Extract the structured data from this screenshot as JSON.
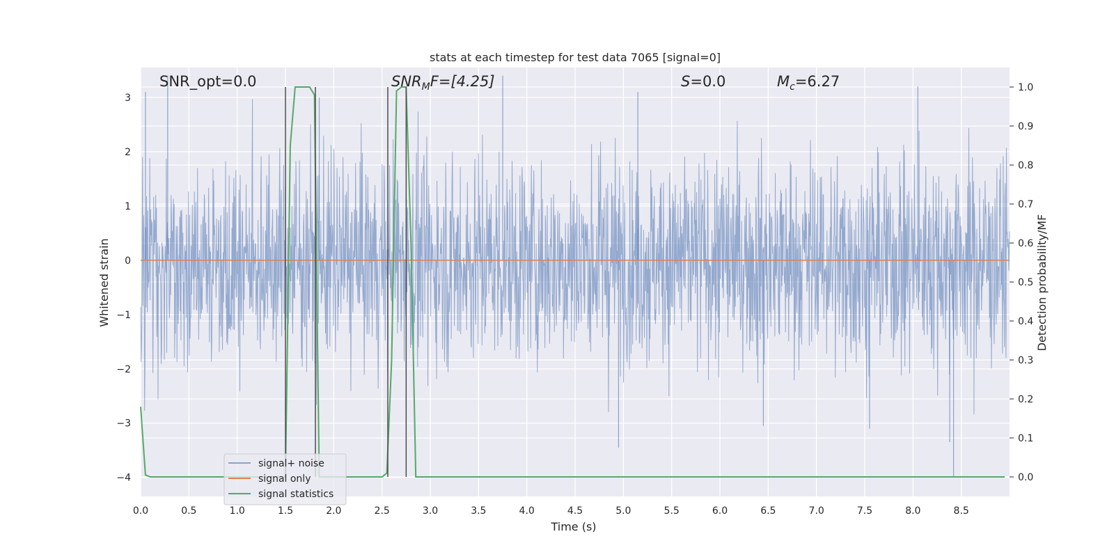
{
  "chart_data": {
    "type": "line",
    "title": "stats at each timestep for test data 7065 [signal=0]",
    "xlabel": "Time (s)",
    "ylabel": "Whitened strain",
    "y2label": "Detection probability/MF",
    "xlim": [
      0.0,
      9.0
    ],
    "ylim": [
      -4.35,
      3.55
    ],
    "y2lim": [
      -0.05,
      1.05
    ],
    "xticks": [
      0.0,
      0.5,
      1.0,
      1.5,
      2.0,
      2.5,
      3.0,
      3.5,
      4.0,
      4.5,
      5.0,
      5.5,
      6.0,
      6.5,
      7.0,
      7.5,
      8.0,
      8.5
    ],
    "xtick_labels": [
      "0.0",
      "0.5",
      "1.0",
      "1.5",
      "2.0",
      "2.5",
      "3.0",
      "3.5",
      "4.0",
      "4.5",
      "5.0",
      "5.5",
      "6.0",
      "6.5",
      "7.0",
      "7.5",
      "8.0",
      "8.5"
    ],
    "yticks": [
      3,
      2,
      1,
      0,
      -1,
      -2,
      -3,
      -4
    ],
    "ytick_labels": [
      "3",
      "2",
      "1",
      "0",
      "−1",
      "−2",
      "−3",
      "−4"
    ],
    "y2ticks": [
      1.0,
      0.9,
      0.8,
      0.7,
      0.6,
      0.5,
      0.4,
      0.3,
      0.2,
      0.1,
      0.0
    ],
    "y2tick_labels": [
      "1.0",
      "0.9",
      "0.8",
      "0.7",
      "0.6",
      "0.5",
      "0.4",
      "0.3",
      "0.2",
      "0.1",
      "0.0"
    ],
    "grid": true,
    "legend_position": "lower-left",
    "annotations": {
      "snr_opt": "SNR_opt=0.0",
      "snr_mf_sym": "SNR",
      "snr_mf_sub": "M",
      "snr_mf_rest": "F=[4.25]",
      "s_sym": "S",
      "s_rest": "=0.0",
      "mc_sym": "M",
      "mc_sub": "c",
      "mc_rest": "=6.27"
    },
    "series": [
      {
        "name": "signal+ noise",
        "color": "#4c72b0",
        "kind": "noise",
        "axis": "left",
        "x_range": [
          0.0,
          9.0
        ],
        "amplitude": 1.0,
        "notable_peaks": [
          {
            "x": 0.05,
            "y": 3.1
          },
          {
            "x": 0.28,
            "y": 3.4
          },
          {
            "x": 1.85,
            "y": 3.0
          },
          {
            "x": 3.75,
            "y": 3.4
          },
          {
            "x": 5.15,
            "y": 3.1
          },
          {
            "x": 8.05,
            "y": 3.2
          },
          {
            "x": 4.95,
            "y": -3.45
          },
          {
            "x": 8.42,
            "y": -4.0
          },
          {
            "x": 8.38,
            "y": -3.35
          },
          {
            "x": 7.55,
            "y": -3.1
          },
          {
            "x": 6.45,
            "y": -3.05
          }
        ]
      },
      {
        "name": "signal only",
        "color": "#dd8452",
        "kind": "line",
        "axis": "left",
        "x": [
          0.0,
          9.0
        ],
        "y": [
          0.0,
          0.0
        ]
      },
      {
        "name": "signal statistics",
        "color": "#55a868",
        "kind": "line",
        "axis": "right",
        "x": [
          0.0,
          0.05,
          0.1,
          0.15,
          1.45,
          1.5,
          1.55,
          1.6,
          1.65,
          1.75,
          1.8,
          1.85,
          1.9,
          2.5,
          2.55,
          2.6,
          2.65,
          2.7,
          2.75,
          2.8,
          2.85,
          2.9,
          2.95,
          8.95
        ],
        "y": [
          0.18,
          0.005,
          0.0,
          0.0,
          0.0,
          0.0,
          0.85,
          1.0,
          1.0,
          1.0,
          0.98,
          0.0,
          0.0,
          0.0,
          0.01,
          0.3,
          0.99,
          1.0,
          1.0,
          0.6,
          0.0,
          0.0,
          0.0,
          0.0
        ]
      }
    ],
    "vlines": {
      "color": "#4d4d4d",
      "x": [
        1.5,
        1.81,
        2.56,
        2.75
      ],
      "ymin": 0.0,
      "ymax": 1.0,
      "axis": "right"
    }
  }
}
